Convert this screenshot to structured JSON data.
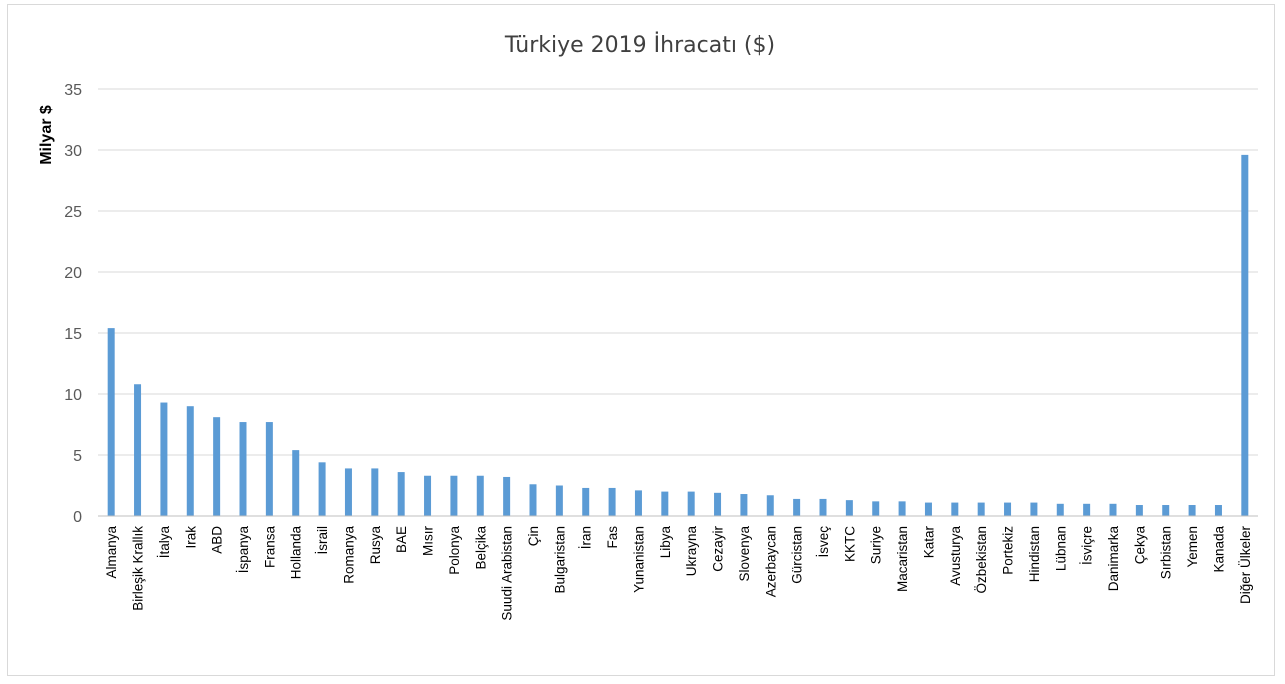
{
  "chart_data": {
    "type": "bar",
    "title": "Türkiye 2019 İhracatı ($)",
    "xlabel": "",
    "ylabel": "Milyar $",
    "ylim": [
      0,
      35
    ],
    "yticks": [
      0,
      5,
      10,
      15,
      20,
      25,
      30,
      35
    ],
    "grid": true,
    "bar_color": "#5b9bd5",
    "categories": [
      "Almanya",
      "Birleşik Krallık",
      "İtalya",
      "Irak",
      "ABD",
      "İspanya",
      "Fransa",
      "Hollanda",
      "İsrail",
      "Romanya",
      "Rusya",
      "BAE",
      "Mısır",
      "Polonya",
      "Belçika",
      "Suudi Arabistan",
      "Çin",
      "Bulgaristan",
      "İran",
      "Fas",
      "Yunanistan",
      "Libya",
      "Ukrayna",
      "Cezayir",
      "Slovenya",
      "Azerbaycan",
      "Gürcistan",
      "İsveç",
      "KKTC",
      "Suriye",
      "Macaristan",
      "Katar",
      "Avusturya",
      "Özbekistan",
      "Portekiz",
      "Hindistan",
      "Lübnan",
      "İsviçre",
      "Danimarka",
      "Çekya",
      "Sırbistan",
      "Yemen",
      "Kanada",
      "Diğer Ülkeler"
    ],
    "values": [
      15.4,
      10.8,
      9.3,
      9.0,
      8.1,
      7.7,
      7.7,
      5.4,
      4.4,
      3.9,
      3.9,
      3.6,
      3.3,
      3.3,
      3.3,
      3.2,
      2.6,
      2.5,
      2.3,
      2.3,
      2.1,
      2.0,
      2.0,
      1.9,
      1.8,
      1.7,
      1.4,
      1.4,
      1.3,
      1.2,
      1.2,
      1.1,
      1.1,
      1.1,
      1.1,
      1.1,
      1.0,
      1.0,
      1.0,
      0.9,
      0.9,
      0.9,
      0.9,
      29.6
    ]
  }
}
